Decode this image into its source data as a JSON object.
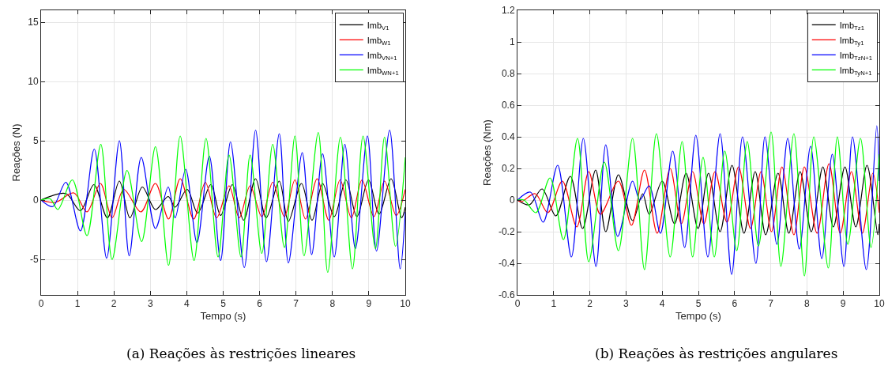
{
  "chart_data": [
    {
      "type": "line",
      "xlabel": "Tempo (s)",
      "ylabel": "Reações (N)",
      "xlim": [
        0,
        10
      ],
      "ylim": [
        -8,
        16
      ],
      "xticks": [
        0,
        1,
        2,
        3,
        4,
        5,
        6,
        7,
        8,
        9,
        10
      ],
      "yticks": [
        -5,
        0,
        5,
        10,
        15
      ],
      "grid": true,
      "legend": "top right",
      "marker": "none",
      "line_style": "solid",
      "annotations": [
        "(a) Reações às restrições lineares"
      ],
      "series": [
        {
          "name": "Imb$_{V}$$_{1}$",
          "color": "#000000",
          "x": [
            0,
            0.68,
            1.08,
            1.45,
            1.82,
            2.15,
            2.44,
            2.78,
            3.14,
            3.49,
            3.68,
            4.01,
            4.3,
            4.66,
            4.93,
            5.25,
            5.56,
            5.89,
            6.18,
            6.54,
            6.79,
            7.15,
            7.44,
            7.73,
            8.05,
            8.37,
            8.67,
            8.99,
            9.28,
            9.61,
            9.9,
            10
          ],
          "values": [
            0,
            0.55,
            -0.9,
            1.3,
            -1.5,
            1.6,
            -1.5,
            1.1,
            -0.8,
            0.3,
            -0.6,
            0.9,
            -1.1,
            1.3,
            -1.3,
            1.3,
            -1.7,
            1.8,
            -1.5,
            1.6,
            -1.8,
            1.4,
            -1.7,
            1.4,
            -1.4,
            1.7,
            -1.4,
            1.7,
            -1.2,
            1.8,
            -1.5,
            -0.6
          ]
        },
        {
          "name": "Imb$_{W}$$_{1}$",
          "color": "#ff0000",
          "x": [
            0,
            0.39,
            0.9,
            1.26,
            1.63,
            1.95,
            2.27,
            2.74,
            3.14,
            3.5,
            3.82,
            4.19,
            4.51,
            4.82,
            5.16,
            5.44,
            5.74,
            6.06,
            6.36,
            6.68,
            6.97,
            7.26,
            7.58,
            7.9,
            8.21,
            8.52,
            8.81,
            9.14,
            9.43,
            9.75,
            10
          ],
          "values": [
            0,
            -0.2,
            0.6,
            -1.0,
            1.4,
            -1.5,
            0.9,
            -1.0,
            1.4,
            -1.6,
            1.8,
            -1.6,
            1.5,
            -1.5,
            1.2,
            -1.5,
            1.2,
            -1.4,
            1.5,
            -1.4,
            1.7,
            -1.6,
            1.8,
            -1.7,
            1.7,
            -1.5,
            1.7,
            -1.4,
            1.6,
            -1.3,
            0.9
          ]
        },
        {
          "name": "Imb$_{V}$$_{N+1}$",
          "color": "#0000ff",
          "x": [
            0,
            0.32,
            0.68,
            1.08,
            1.46,
            1.8,
            2.15,
            2.42,
            2.75,
            3.14,
            3.49,
            3.68,
            3.97,
            4.28,
            4.62,
            4.93,
            5.2,
            5.58,
            5.89,
            6.19,
            6.54,
            6.79,
            7.17,
            7.43,
            7.73,
            8.05,
            8.34,
            8.63,
            8.96,
            9.21,
            9.57,
            9.86,
            10
          ],
          "values": [
            0,
            -0.55,
            1.5,
            -2.6,
            4.3,
            -4.9,
            5.0,
            -4.7,
            3.6,
            -2.4,
            1.1,
            -1.5,
            2.6,
            -3.6,
            3.7,
            -5.1,
            4.9,
            -5.7,
            5.9,
            -5.2,
            5.6,
            -5.3,
            4.0,
            -4.6,
            3.9,
            -4.8,
            4.7,
            -4.1,
            5.4,
            -4.3,
            5.9,
            -5.8,
            -1.0
          ]
        },
        {
          "name": "Imb$_{W}$$_{N+1}$",
          "color": "#00ff00",
          "x": [
            0,
            0.25,
            0.46,
            0.86,
            1.26,
            1.64,
            1.95,
            2.36,
            2.76,
            3.14,
            3.5,
            3.82,
            4.2,
            4.53,
            4.86,
            5.16,
            5.49,
            5.74,
            6.06,
            6.36,
            6.68,
            6.97,
            7.22,
            7.61,
            7.87,
            8.22,
            8.55,
            8.84,
            9.18,
            9.43,
            9.73,
            10
          ],
          "values": [
            0,
            0.1,
            -0.8,
            1.7,
            -3.0,
            4.7,
            -5.0,
            2.5,
            -3.5,
            4.5,
            -5.5,
            5.4,
            -5.1,
            5.2,
            -4.8,
            3.8,
            -4.8,
            3.8,
            -4.5,
            4.7,
            -4.0,
            5.4,
            -4.7,
            5.7,
            -6.1,
            5.3,
            -5.8,
            5.4,
            -4.1,
            5.3,
            -3.9,
            3.6
          ]
        }
      ]
    },
    {
      "type": "line",
      "xlabel": "Tempo (s)",
      "ylabel": "Reações (Nm)",
      "xlim": [
        0,
        10
      ],
      "ylim": [
        -0.6,
        1.2
      ],
      "xticks": [
        0,
        1,
        2,
        3,
        4,
        5,
        6,
        7,
        8,
        9,
        10
      ],
      "yticks": [
        -0.6,
        -0.4,
        -0.2,
        0,
        0.2,
        0.4,
        0.6,
        0.8,
        1,
        1.2
      ],
      "grid": true,
      "legend": "top right",
      "marker": "none",
      "line_style": "solid",
      "annotations": [
        "(b) Reações às restrições angulares"
      ],
      "series": [
        {
          "name": "Imb$_{Tz}$$_{1}$",
          "color": "#000000",
          "x": [
            0,
            0.33,
            0.68,
            1.06,
            1.46,
            1.8,
            2.16,
            2.44,
            2.79,
            3.18,
            3.46,
            3.64,
            4.0,
            4.34,
            4.66,
            4.99,
            5.28,
            5.6,
            5.93,
            6.26,
            6.57,
            6.86,
            7.2,
            7.5,
            7.81,
            8.12,
            8.44,
            8.73,
            9.05,
            9.35,
            9.66,
            9.96,
            10
          ],
          "values": [
            0,
            -0.03,
            0.07,
            -0.1,
            0.15,
            -0.18,
            0.19,
            -0.2,
            0.16,
            -0.13,
            0.04,
            -0.09,
            0.12,
            -0.15,
            0.17,
            -0.18,
            0.17,
            -0.2,
            0.22,
            -0.21,
            0.18,
            -0.22,
            0.17,
            -0.21,
            0.18,
            -0.2,
            0.21,
            -0.17,
            0.21,
            -0.17,
            0.22,
            -0.22,
            -0.15
          ]
        },
        {
          "name": "Imb$_{Ty}$$_{1}$",
          "color": "#ff0000",
          "x": [
            0,
            0.11,
            0.49,
            0.84,
            1.24,
            1.64,
            1.97,
            2.29,
            2.79,
            3.15,
            3.51,
            3.86,
            4.22,
            4.53,
            4.84,
            5.15,
            5.46,
            5.79,
            6.11,
            6.44,
            6.73,
            7.02,
            7.31,
            7.64,
            7.93,
            8.28,
            8.61,
            8.92,
            9.23,
            9.53,
            9.82,
            10
          ],
          "values": [
            0,
            -0.01,
            0.04,
            -0.08,
            0.12,
            -0.17,
            0.18,
            -0.09,
            0.12,
            -0.16,
            0.19,
            -0.21,
            0.2,
            -0.15,
            0.18,
            -0.15,
            0.18,
            -0.14,
            0.21,
            -0.18,
            0.18,
            -0.2,
            0.21,
            -0.22,
            0.21,
            -0.21,
            0.23,
            -0.21,
            0.18,
            -0.21,
            0.17,
            -0.08
          ]
        },
        {
          "name": "Imb$_{Tz}$$_{N+1}$",
          "color": "#0000ff",
          "x": [
            0,
            0.36,
            0.71,
            1.11,
            1.49,
            1.82,
            2.17,
            2.44,
            2.77,
            3.18,
            3.38,
            3.64,
            3.95,
            4.29,
            4.62,
            4.93,
            5.26,
            5.6,
            5.92,
            6.22,
            6.59,
            6.84,
            7.17,
            7.47,
            7.79,
            8.1,
            8.41,
            8.7,
            9.02,
            9.26,
            9.64,
            9.93,
            10
          ],
          "values": [
            0,
            0.05,
            -0.14,
            0.22,
            -0.36,
            0.39,
            -0.42,
            0.35,
            -0.23,
            0.12,
            0.0,
            0.09,
            -0.21,
            0.31,
            -0.3,
            0.41,
            -0.36,
            0.42,
            -0.47,
            0.4,
            -0.4,
            0.4,
            -0.28,
            0.39,
            -0.31,
            0.34,
            -0.37,
            0.29,
            -0.42,
            0.4,
            -0.44,
            0.47,
            0.12
          ]
        },
        {
          "name": "Imb$_{Ty}$$_{N+1}$",
          "color": "#00ff00",
          "x": [
            0,
            0.18,
            0.51,
            0.9,
            1.27,
            1.66,
            1.97,
            2.4,
            2.79,
            3.18,
            3.51,
            3.84,
            4.22,
            4.55,
            4.84,
            5.13,
            5.44,
            5.73,
            6.06,
            6.35,
            6.66,
            7.01,
            7.28,
            7.64,
            7.93,
            8.19,
            8.59,
            8.84,
            9.13,
            9.48,
            9.77,
            10
          ],
          "values": [
            0,
            0.0,
            -0.08,
            0.14,
            -0.25,
            0.39,
            -0.39,
            0.24,
            -0.32,
            0.39,
            -0.44,
            0.42,
            -0.36,
            0.37,
            -0.36,
            0.27,
            -0.36,
            0.31,
            -0.32,
            0.37,
            -0.29,
            0.43,
            -0.42,
            0.42,
            -0.48,
            0.4,
            -0.43,
            0.4,
            -0.28,
            0.39,
            -0.3,
            0.29
          ]
        }
      ]
    }
  ]
}
